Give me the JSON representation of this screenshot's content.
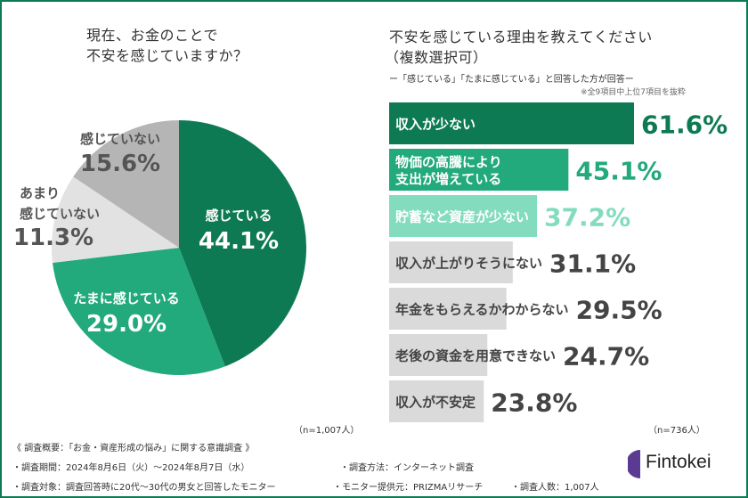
{
  "chart_data": [
    {
      "type": "pie",
      "title": "現在、お金のことで\n不安を感じていますか？",
      "title_lines": [
        "現在、お金のことで",
        "不安を感じていますか？"
      ],
      "slices": [
        {
          "label": "感じている",
          "value": 44.1,
          "display": "44.1%",
          "color": "#0e7a53"
        },
        {
          "label": "たまに感じている",
          "value": 29.0,
          "display": "29.0%",
          "color": "#22a97c"
        },
        {
          "label": "あまり\n感じていない",
          "label_lines": [
            "あまり",
            "感じていない"
          ],
          "value": 11.3,
          "display": "11.3%",
          "color": "#e2e2e2"
        },
        {
          "label": "感じていない",
          "value": 15.6,
          "display": "15.6%",
          "color": "#b5b5b5"
        }
      ],
      "sample": "（n=1,007人）"
    },
    {
      "type": "bar",
      "orientation": "horizontal",
      "title_lines": [
        "不安を感じている理由を教えてください",
        "（複数選択可）"
      ],
      "subtitle": "ー「感じている」「たまに感じている」と回答した方が回答ー",
      "note": "※全9項目中上位7項目を抜粋",
      "categories": [
        "収入が少ない",
        "物価の高騰により\n支出が増えている",
        "貯蓄など資産が少ない",
        "収入が上がりそうにない",
        "年金をもらえるかわからない",
        "老後の資金を用意できない",
        "収入が不安定"
      ],
      "values": [
        61.6,
        45.1,
        37.2,
        31.1,
        29.5,
        24.7,
        23.8
      ],
      "display": [
        "61.6%",
        "45.1%",
        "37.2%",
        "31.1%",
        "29.5%",
        "24.7%",
        "23.8%"
      ],
      "bar_colors": [
        "#0e7a53",
        "#22a97c",
        "#84dcbf",
        "#dadada",
        "#dadada",
        "#dadada",
        "#dadada"
      ],
      "value_colors": [
        "#0e7a53",
        "#22a97c",
        "#84dcbf",
        "#444444",
        "#444444",
        "#444444",
        "#444444"
      ],
      "label_colors": [
        "#ffffff",
        "#ffffff",
        "#ffffff",
        "#444444",
        "#444444",
        "#444444",
        "#444444"
      ],
      "sample": "（n=736人）"
    }
  ],
  "footer": {
    "overview": "《 調査概要：「お金・資産形成の悩み」に関する意識調査 》",
    "period": "・調査期間：2024年8月6日（火）～2024年8月7日（水）",
    "method": "・調査方法：インターネット調査",
    "target": "・調査対象：調査回答時に20代～30代の男女と回答したモニター",
    "provider": "・モニター提供元：PRIZMAリサーチ",
    "count": "・調査人数：1,007人"
  },
  "logo": {
    "text": "Fintokei",
    "color": "#5b3a93"
  }
}
